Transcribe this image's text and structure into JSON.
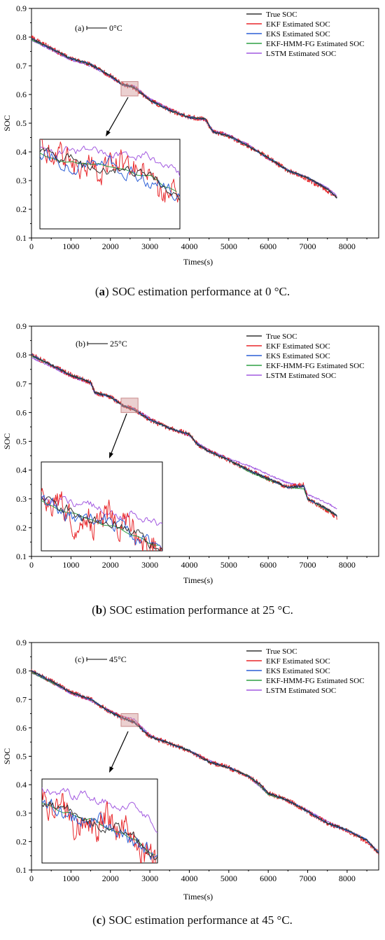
{
  "chart_data": [
    {
      "type": "line",
      "label": "(a)",
      "annotation": "0°C",
      "caption_letter": "a",
      "caption_text": " SOC estimation performance at 0 °C.",
      "xlabel": "Times(s)",
      "ylabel": "SOC",
      "xlim": [
        0,
        8800
      ],
      "ylim": [
        0.1,
        0.9
      ],
      "xticks": [
        0,
        1000,
        2000,
        3000,
        4000,
        5000,
        6000,
        7000,
        8000
      ],
      "yticks": [
        0.1,
        0.2,
        0.3,
        0.4,
        0.5,
        0.6,
        0.7,
        0.8,
        0.9
      ],
      "x_end": 7750,
      "legend_position": "top-right",
      "series": [
        {
          "name": "True SOC",
          "color": "#333333",
          "x": [
            0,
            500,
            1000,
            1500,
            2000,
            2300,
            2600,
            3000,
            3500,
            4000,
            4400,
            4600,
            5000,
            5500,
            6000,
            6500,
            7000,
            7500,
            7750
          ],
          "values": [
            0.795,
            0.76,
            0.725,
            0.705,
            0.665,
            0.635,
            0.625,
            0.58,
            0.545,
            0.52,
            0.515,
            0.47,
            0.455,
            0.42,
            0.38,
            0.335,
            0.31,
            0.27,
            0.24
          ]
        },
        {
          "name": "EKF Estimated SOC",
          "color": "#e8262a",
          "x": [
            0,
            500,
            1000,
            1500,
            2000,
            2300,
            2600,
            3000,
            3500,
            4000,
            4400,
            4600,
            5000,
            5500,
            6000,
            6500,
            7000,
            7500,
            7750
          ],
          "values": [
            0.8,
            0.76,
            0.725,
            0.705,
            0.665,
            0.635,
            0.625,
            0.58,
            0.545,
            0.52,
            0.515,
            0.47,
            0.455,
            0.42,
            0.38,
            0.335,
            0.305,
            0.265,
            0.24
          ]
        },
        {
          "name": "EKS Estimated SOC",
          "color": "#2c5fd6",
          "x": [
            0,
            500,
            1000,
            1500,
            2000,
            2300,
            2600,
            3000,
            3500,
            4000,
            4400,
            4600,
            5000,
            5500,
            6000,
            6500,
            7000,
            7500,
            7750
          ],
          "values": [
            0.795,
            0.76,
            0.725,
            0.705,
            0.665,
            0.635,
            0.625,
            0.58,
            0.545,
            0.52,
            0.515,
            0.47,
            0.455,
            0.42,
            0.38,
            0.335,
            0.31,
            0.27,
            0.24
          ]
        },
        {
          "name": "EKF-HMM-FG Estimated SOC",
          "color": "#2ea043",
          "x": [
            0,
            500,
            1000,
            1500,
            2000,
            2300,
            2600,
            3000,
            3500,
            4000,
            4400,
            4600,
            5000,
            5500,
            6000,
            6500,
            7000,
            7500,
            7750
          ],
          "values": [
            0.79,
            0.76,
            0.725,
            0.705,
            0.665,
            0.635,
            0.625,
            0.58,
            0.545,
            0.52,
            0.515,
            0.47,
            0.455,
            0.42,
            0.38,
            0.335,
            0.31,
            0.27,
            0.24
          ]
        },
        {
          "name": "LSTM Estimated SOC",
          "color": "#a259e0",
          "x": [
            0,
            500,
            1000,
            1500,
            2000,
            2300,
            2600,
            3000,
            3500,
            4000,
            4400,
            4600,
            5000,
            5500,
            6000,
            6500,
            7000,
            7500,
            7750
          ],
          "values": [
            0.79,
            0.755,
            0.72,
            0.7,
            0.66,
            0.635,
            0.63,
            0.585,
            0.55,
            0.52,
            0.51,
            0.475,
            0.46,
            0.425,
            0.375,
            0.335,
            0.31,
            0.275,
            0.245
          ]
        }
      ]
    },
    {
      "type": "line",
      "label": "(b)",
      "annotation": "25°C",
      "caption_letter": "b",
      "caption_text": " SOC estimation performance at 25 °C.",
      "xlabel": "Times(s)",
      "ylabel": "SOC",
      "xlim": [
        0,
        8800
      ],
      "ylim": [
        0.1,
        0.9
      ],
      "xticks": [
        0,
        1000,
        2000,
        3000,
        4000,
        5000,
        6000,
        7000,
        8000
      ],
      "yticks": [
        0.1,
        0.2,
        0.3,
        0.4,
        0.5,
        0.6,
        0.7,
        0.8,
        0.9
      ],
      "x_end": 7750,
      "legend_position": "top-right",
      "series": [
        {
          "name": "True SOC",
          "color": "#333333",
          "x": [
            0,
            500,
            1000,
            1500,
            1600,
            2000,
            2300,
            2600,
            3000,
            3500,
            4000,
            4200,
            4500,
            5000,
            5500,
            6000,
            6500,
            6900,
            7000,
            7500,
            7750
          ],
          "values": [
            0.8,
            0.765,
            0.73,
            0.705,
            0.67,
            0.655,
            0.625,
            0.61,
            0.575,
            0.545,
            0.525,
            0.49,
            0.465,
            0.435,
            0.4,
            0.37,
            0.34,
            0.345,
            0.3,
            0.265,
            0.24
          ]
        },
        {
          "name": "EKF Estimated SOC",
          "color": "#e8262a",
          "x": [
            0,
            500,
            1000,
            1500,
            1600,
            2000,
            2300,
            2600,
            3000,
            3500,
            4000,
            4200,
            4500,
            5000,
            5500,
            6000,
            6500,
            6900,
            7000,
            7500,
            7750
          ],
          "values": [
            0.8,
            0.765,
            0.73,
            0.705,
            0.67,
            0.655,
            0.625,
            0.61,
            0.575,
            0.545,
            0.525,
            0.49,
            0.465,
            0.435,
            0.4,
            0.37,
            0.34,
            0.35,
            0.3,
            0.26,
            0.235
          ]
        },
        {
          "name": "EKS Estimated SOC",
          "color": "#2c5fd6",
          "x": [
            0,
            500,
            1000,
            1500,
            1600,
            2000,
            2300,
            2600,
            3000,
            3500,
            4000,
            4200,
            4500,
            5000,
            5500,
            6000,
            6500,
            6900,
            7000,
            7500,
            7750
          ],
          "values": [
            0.8,
            0.765,
            0.73,
            0.705,
            0.67,
            0.655,
            0.625,
            0.61,
            0.575,
            0.545,
            0.525,
            0.49,
            0.465,
            0.435,
            0.4,
            0.37,
            0.34,
            0.345,
            0.3,
            0.265,
            0.24
          ]
        },
        {
          "name": "EKF-HMM-FG Estimated SOC",
          "color": "#2ea043",
          "x": [
            0,
            500,
            1000,
            1500,
            1600,
            2000,
            2300,
            2600,
            3000,
            3500,
            4000,
            4200,
            4500,
            5000,
            5500,
            6000,
            6500,
            6900,
            7000,
            7500,
            7750
          ],
          "values": [
            0.795,
            0.765,
            0.73,
            0.705,
            0.67,
            0.655,
            0.625,
            0.61,
            0.575,
            0.545,
            0.525,
            0.49,
            0.465,
            0.435,
            0.395,
            0.365,
            0.34,
            0.335,
            0.3,
            0.26,
            0.24
          ]
        },
        {
          "name": "LSTM Estimated SOC",
          "color": "#a259e0",
          "x": [
            0,
            500,
            1000,
            1500,
            1600,
            2000,
            2300,
            2600,
            3000,
            3500,
            4000,
            4200,
            4500,
            5000,
            5500,
            6000,
            6500,
            6900,
            7000,
            7500,
            7750
          ],
          "values": [
            0.79,
            0.76,
            0.725,
            0.7,
            0.665,
            0.655,
            0.625,
            0.615,
            0.58,
            0.545,
            0.52,
            0.495,
            0.47,
            0.44,
            0.415,
            0.385,
            0.355,
            0.345,
            0.315,
            0.285,
            0.265
          ]
        }
      ]
    },
    {
      "type": "line",
      "label": "(c)",
      "annotation": "45°C",
      "caption_letter": "c",
      "caption_text": " SOC estimation performance at 45 °C.",
      "xlabel": "Times(s)",
      "ylabel": "SOC",
      "xlim": [
        0,
        8800
      ],
      "ylim": [
        0.1,
        0.9
      ],
      "xticks": [
        0,
        1000,
        2000,
        3000,
        4000,
        5000,
        6000,
        7000,
        8000
      ],
      "yticks": [
        0.1,
        0.2,
        0.3,
        0.4,
        0.5,
        0.6,
        0.7,
        0.8,
        0.9
      ],
      "x_end": 8800,
      "legend_position": "top-right",
      "series": [
        {
          "name": "True SOC",
          "color": "#333333",
          "x": [
            0,
            500,
            1000,
            1500,
            2000,
            2300,
            2600,
            3000,
            3500,
            4000,
            4500,
            5000,
            5500,
            5800,
            6000,
            6500,
            7000,
            7500,
            8000,
            8500,
            8800
          ],
          "values": [
            0.8,
            0.765,
            0.725,
            0.7,
            0.655,
            0.635,
            0.62,
            0.57,
            0.545,
            0.52,
            0.48,
            0.46,
            0.43,
            0.4,
            0.37,
            0.345,
            0.305,
            0.265,
            0.24,
            0.205,
            0.16
          ]
        },
        {
          "name": "EKF Estimated SOC",
          "color": "#e8262a",
          "x": [
            0,
            500,
            1000,
            1500,
            2000,
            2300,
            2600,
            3000,
            3500,
            4000,
            4500,
            5000,
            5500,
            5800,
            6000,
            6500,
            7000,
            7500,
            8000,
            8500,
            8800
          ],
          "values": [
            0.8,
            0.765,
            0.725,
            0.7,
            0.655,
            0.635,
            0.62,
            0.57,
            0.545,
            0.52,
            0.48,
            0.46,
            0.43,
            0.4,
            0.37,
            0.345,
            0.305,
            0.265,
            0.24,
            0.2,
            0.16
          ]
        },
        {
          "name": "EKS Estimated SOC",
          "color": "#2c5fd6",
          "x": [
            0,
            500,
            1000,
            1500,
            2000,
            2300,
            2600,
            3000,
            3500,
            4000,
            4500,
            5000,
            5500,
            5800,
            6000,
            6500,
            7000,
            7500,
            8000,
            8500,
            8800
          ],
          "values": [
            0.8,
            0.765,
            0.725,
            0.7,
            0.655,
            0.635,
            0.62,
            0.57,
            0.545,
            0.52,
            0.48,
            0.46,
            0.43,
            0.4,
            0.37,
            0.345,
            0.305,
            0.265,
            0.24,
            0.205,
            0.16
          ]
        },
        {
          "name": "EKF-HMM-FG Estimated SOC",
          "color": "#2ea043",
          "x": [
            0,
            500,
            1000,
            1500,
            2000,
            2300,
            2600,
            3000,
            3500,
            4000,
            4500,
            5000,
            5500,
            5800,
            6000,
            6500,
            7000,
            7500,
            8000,
            8500,
            8800
          ],
          "values": [
            0.795,
            0.76,
            0.725,
            0.7,
            0.655,
            0.635,
            0.62,
            0.57,
            0.545,
            0.52,
            0.48,
            0.46,
            0.43,
            0.395,
            0.365,
            0.345,
            0.305,
            0.265,
            0.24,
            0.205,
            0.16
          ]
        },
        {
          "name": "LSTM Estimated SOC",
          "color": "#a259e0",
          "x": [
            0,
            500,
            1000,
            1500,
            2000,
            2300,
            2600,
            3000,
            3500,
            4000,
            4500,
            5000,
            5500,
            5800,
            6000,
            6500,
            7000,
            7500,
            8000,
            8500,
            8800
          ],
          "values": [
            0.795,
            0.76,
            0.72,
            0.695,
            0.66,
            0.64,
            0.63,
            0.575,
            0.545,
            0.52,
            0.485,
            0.46,
            0.43,
            0.39,
            0.37,
            0.345,
            0.31,
            0.27,
            0.24,
            0.205,
            0.165
          ]
        }
      ]
    }
  ]
}
